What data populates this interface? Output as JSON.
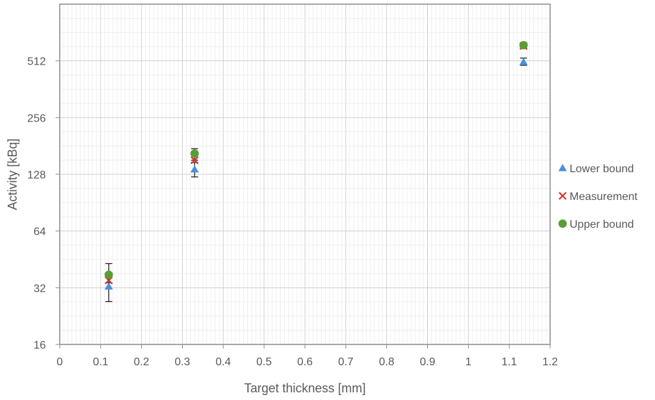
{
  "chart_data": {
    "type": "scatter",
    "title": "",
    "xlabel": "Target thickness [mm]",
    "ylabel": "Activity [kBq]",
    "xlim": [
      0,
      1.2
    ],
    "ylim": [
      16,
      1024
    ],
    "yscale": "log2",
    "x_ticks": [
      "0",
      "0.1",
      "0.2",
      "0.3",
      "0.4",
      "0.5",
      "0.6",
      "0.7",
      "0.8",
      "0.9",
      "1",
      "1.1",
      "1.2"
    ],
    "y_ticks": [
      "16",
      "32",
      "64",
      "128",
      "256",
      "512"
    ],
    "grid": true,
    "legend_position": "right",
    "series": [
      {
        "name": "Lower bound",
        "marker": "triangle",
        "color": "#4a90d9",
        "points": [
          {
            "x": 0.12,
            "y": 32.5,
            "err_low": 27,
            "err_high": 38
          },
          {
            "x": 0.33,
            "y": 136,
            "err_low": 124,
            "err_high": 148
          },
          {
            "x": 1.135,
            "y": 505,
            "err_low": 485,
            "err_high": 530
          }
        ]
      },
      {
        "name": "Measurement",
        "marker": "x",
        "color": "#d9342b",
        "points": [
          {
            "x": 0.12,
            "y": 35
          },
          {
            "x": 0.33,
            "y": 152
          },
          {
            "x": 1.135,
            "y": 615
          }
        ]
      },
      {
        "name": "Upper bound",
        "marker": "circle",
        "color": "#5a9e32",
        "points": [
          {
            "x": 0.12,
            "y": 37.5,
            "err_low": 34,
            "err_high": 43
          },
          {
            "x": 0.33,
            "y": 165,
            "err_low": 152,
            "err_high": 175
          },
          {
            "x": 1.135,
            "y": 620,
            "err_low": 600,
            "err_high": 640
          }
        ]
      }
    ]
  }
}
